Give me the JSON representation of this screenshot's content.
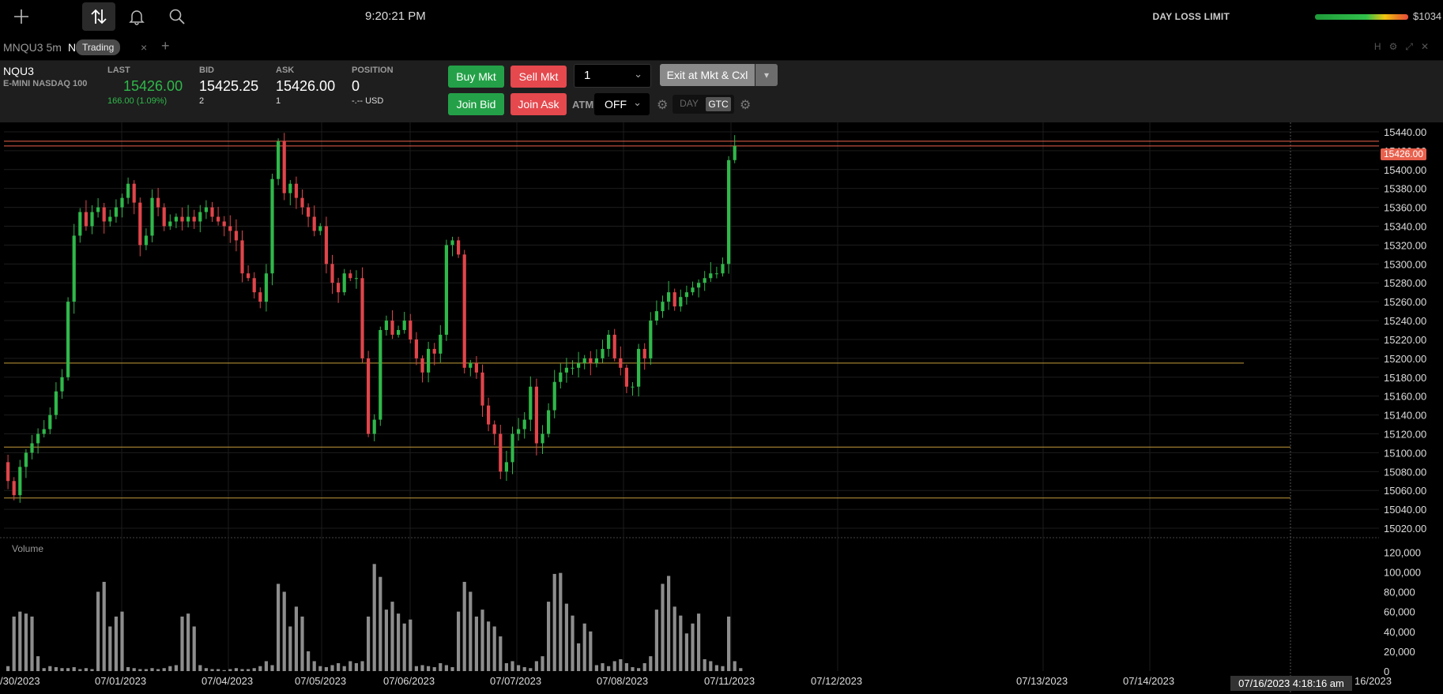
{
  "topbar": {
    "icons": [
      "add-icon",
      "trading-icon",
      "bell-icon",
      "search-icon"
    ],
    "clock": "9:20:21 PM",
    "day_loss_limit_label": "DAY LOSS LIMIT",
    "day_loss_limit_value": "$1034"
  },
  "tabs": {
    "tab1": "MNQU3 5m",
    "tab2": "N",
    "tooltip": "Trading",
    "close": "×",
    "add": "+",
    "window_controls": [
      "H",
      "⚙",
      "⤢",
      "✕"
    ]
  },
  "quote": {
    "symbol": "NQU3",
    "name": "E-MINI NASDAQ 100",
    "last_label": "LAST",
    "last_value": "15426.00",
    "last_change": "166.00 (1.09%)",
    "bid_label": "BID",
    "bid_value": "15425.25",
    "bid_size": "2",
    "ask_label": "ASK",
    "ask_value": "15426.00",
    "ask_size": "1",
    "position_label": "POSITION",
    "position_value": "0",
    "position_sub": "-.-- USD"
  },
  "order": {
    "buy_mkt": "Buy Mkt",
    "sell_mkt": "Sell Mkt",
    "join_bid": "Join Bid",
    "join_ask": "Join Ask",
    "quantity": "1",
    "exit": "Exit at Mkt & Cxl",
    "atm_label": "ATM",
    "atm_value": "OFF",
    "tif_day": "DAY",
    "tif_gtc": "GTC"
  },
  "colors": {
    "up": "#2fb84a",
    "down": "#e0454a",
    "level_line": "#c49a3a",
    "last_price_line": "#e8614d",
    "volume": "#8d8d8d"
  },
  "chart": {
    "last_price_tag": "15426.00",
    "volume_label": "Volume",
    "crosshair_date": "07/16/2023 4:18:16 am",
    "y_ticks": [
      "15440.00",
      "15420.00",
      "15400.00",
      "15380.00",
      "15360.00",
      "15340.00",
      "15320.00",
      "15300.00",
      "15280.00",
      "15260.00",
      "15240.00",
      "15220.00",
      "15200.00",
      "15180.00",
      "15160.00",
      "15140.00",
      "15120.00",
      "15100.00",
      "15080.00",
      "15060.00",
      "15040.00",
      "15020.00"
    ],
    "vol_ticks": [
      "120,000",
      "100,000",
      "80,000",
      "60,000",
      "40,000",
      "20,000",
      "0"
    ],
    "x_labels": [
      "/30/2023",
      "07/01/2023",
      "07/04/2023",
      "07/05/2023",
      "07/06/2023",
      "07/07/2023",
      "07/08/2023",
      "07/11/2023",
      "07/12/2023",
      "07/13/2023",
      "07/14/2023",
      "16/2023"
    ]
  },
  "chart_data": {
    "type": "candlestick",
    "ylim": [
      15010,
      15450
    ],
    "volume_ylim": [
      0,
      125000
    ],
    "horizontal_levels": [
      15430,
      15425,
      15195,
      15106,
      15052
    ],
    "price_path": [
      15090,
      15070,
      15055,
      15085,
      15100,
      15110,
      15120,
      15125,
      15140,
      15165,
      15180,
      15260,
      15330,
      15355,
      15340,
      15355,
      15360,
      15345,
      15350,
      15360,
      15370,
      15385,
      15365,
      15320,
      15330,
      15370,
      15360,
      15340,
      15345,
      15350,
      15345,
      15350,
      15345,
      15355,
      15360,
      15350,
      15345,
      15340,
      15335,
      15325,
      15290,
      15285,
      15270,
      15260,
      15290,
      15390,
      15430,
      15375,
      15385,
      15370,
      15360,
      15350,
      15335,
      15340,
      15300,
      15280,
      15270,
      15290,
      15285,
      15285,
      15200,
      15120,
      15135,
      15230,
      15240,
      15225,
      15230,
      15240,
      15220,
      15200,
      15185,
      15210,
      15205,
      15225,
      15320,
      15325,
      15310,
      15190,
      15195,
      15185,
      15150,
      15130,
      15120,
      15080,
      15090,
      15120,
      15125,
      15135,
      15170,
      15110,
      15120,
      15145,
      15175,
      15185,
      15190,
      15190,
      15195,
      15200,
      15195,
      15200,
      15210,
      15225,
      15200,
      15190,
      15170,
      15170,
      15210,
      15200,
      15240,
      15250,
      15260,
      15270,
      15255,
      15265,
      15270,
      15275,
      15280,
      15285,
      15290,
      15290,
      15300,
      15410,
      15425
    ],
    "volume_path": [
      5000,
      55000,
      60000,
      58000,
      55000,
      15000,
      3000,
      5000,
      4000,
      3000,
      3000,
      4000,
      2000,
      3000,
      2000,
      80000,
      90000,
      45000,
      55000,
      60000,
      4000,
      3000,
      2000,
      2000,
      3000,
      2000,
      3000,
      5000,
      6000,
      55000,
      58000,
      45000,
      6000,
      3000,
      2000,
      2000,
      1000,
      2000,
      3000,
      2000,
      2000,
      3000,
      5000,
      10000,
      6000,
      88000,
      80000,
      45000,
      65000,
      55000,
      20000,
      10000,
      5000,
      4000,
      6000,
      8000,
      5000,
      10000,
      8000,
      10000,
      55000,
      108000,
      95000,
      62000,
      70000,
      58000,
      48000,
      52000,
      5000,
      6000,
      5000,
      4000,
      8000,
      6000,
      4000,
      60000,
      90000,
      80000,
      55000,
      62000,
      50000,
      45000,
      35000,
      8000,
      10000,
      6000,
      4000,
      3000,
      10000,
      15000,
      70000,
      98000,
      99000,
      68000,
      56000,
      28000,
      48000,
      40000,
      6000,
      8000,
      5000,
      10000,
      12000,
      8000,
      4000,
      3000,
      8000,
      15000,
      62000,
      88000,
      96000,
      65000,
      56000,
      38000,
      48000,
      58000,
      12000,
      10000,
      6000,
      5000,
      55000,
      10000,
      3000
    ]
  }
}
